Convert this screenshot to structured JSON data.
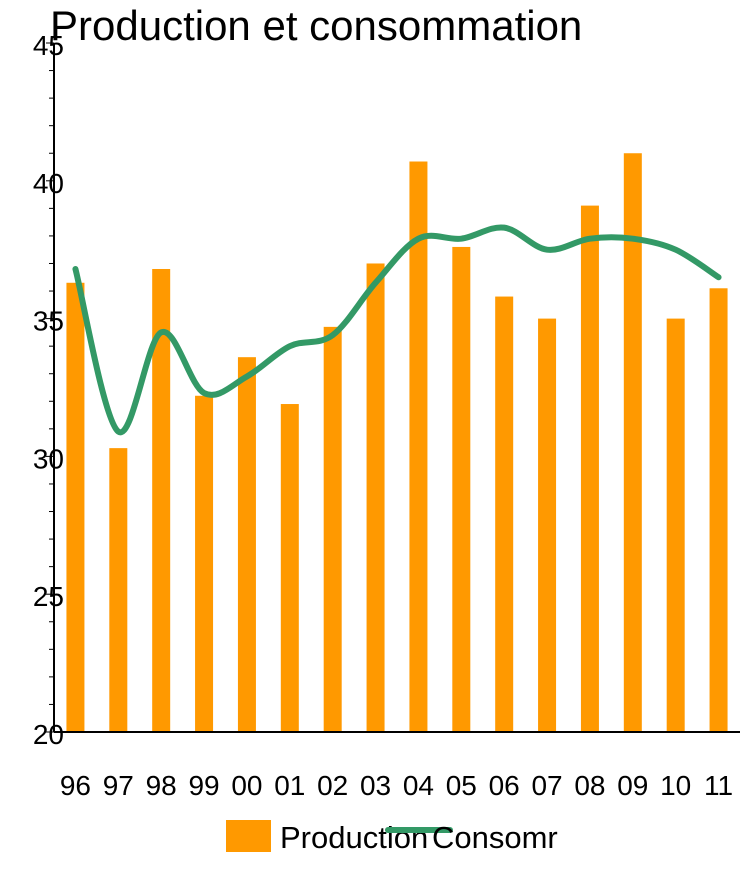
{
  "chart_data": {
    "type": "bar",
    "title": "Production et consommation",
    "categories": [
      "96",
      "97",
      "98",
      "99",
      "00",
      "01",
      "02",
      "03",
      "04",
      "05",
      "06",
      "07",
      "08",
      "09",
      "10",
      "11"
    ],
    "series": [
      {
        "name": "Production",
        "type": "bar",
        "color": "#ff9900",
        "values": [
          36.3,
          30.3,
          36.8,
          32.2,
          33.6,
          31.9,
          34.7,
          37.0,
          40.7,
          37.6,
          35.8,
          35.0,
          39.1,
          41.0,
          35.0,
          36.1
        ]
      },
      {
        "name": "Consomr",
        "type": "line",
        "color": "#339966",
        "values": [
          36.8,
          30.9,
          34.5,
          32.3,
          32.9,
          34.0,
          34.4,
          36.3,
          37.9,
          37.9,
          38.3,
          37.5,
          37.9,
          37.9,
          37.5,
          36.5
        ]
      }
    ],
    "ylim": [
      20,
      45
    ],
    "yticks": [
      "20",
      "25",
      "30",
      "35",
      "40",
      "45"
    ],
    "grid": false,
    "legend_position": "bottom"
  }
}
